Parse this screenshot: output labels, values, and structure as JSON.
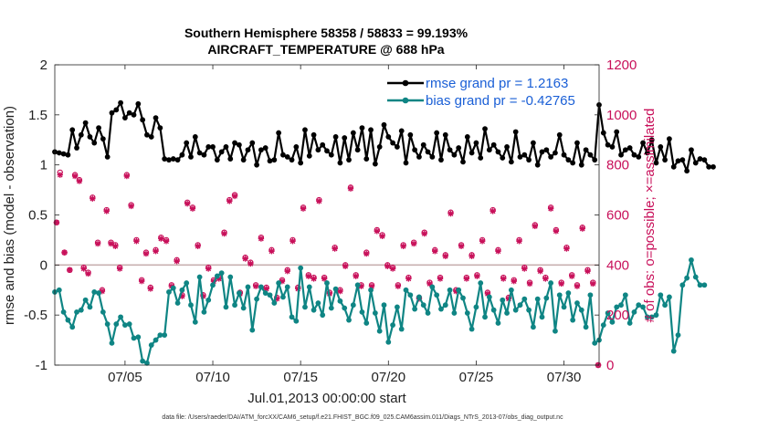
{
  "chart_data": {
    "type": "line",
    "title_line1": "Southern Hemisphere 58358 / 58833 = 99.193%",
    "title_line2": "AIRCRAFT_TEMPERATURE @ 688 hPa",
    "ylabel_left": "rmse and bias (model - observation)",
    "ylabel_right": "# of obs: o=possible; ×=assimilated",
    "xlabel": "Jul.01,2013 00:00:00 start",
    "footnote": "data file: /Users/raeder/DAI/ATM_forcXX/CAM6_setup/f.e21.FHIST_BGC.f09_025.CAM6assim.011/Diags_NTrS_2013-07/obs_diag_output.nc",
    "ylim_left": [
      -1,
      2
    ],
    "ylim_right": [
      0,
      1200
    ],
    "xlim": [
      1,
      32
    ],
    "yticks_left": [
      "2",
      "1.5",
      "1",
      "0.5",
      "0",
      "-0.5",
      "-1"
    ],
    "yticks_left_values": [
      2,
      1.5,
      1,
      0.5,
      0,
      -0.5,
      -1
    ],
    "yticks_right": [
      "1200",
      "1000",
      "800",
      "600",
      "400",
      "200",
      "0"
    ],
    "yticks_right_values": [
      1200,
      1000,
      800,
      600,
      400,
      200,
      0
    ],
    "xticks": [
      "07/05",
      "07/10",
      "07/15",
      "07/20",
      "07/25",
      "07/30"
    ],
    "xticks_values": [
      5,
      10,
      15,
      20,
      25,
      30
    ],
    "x_start": 1.0,
    "x_step": 0.25,
    "series": [
      {
        "name": "rmse grand pr = 1.2163",
        "color": "#000000",
        "values": [
          1.13,
          1.12,
          1.11,
          1.1,
          1.35,
          1.17,
          1.3,
          1.42,
          1.28,
          1.22,
          1.37,
          1.26,
          1.08,
          1.52,
          1.55,
          1.62,
          1.47,
          1.52,
          1.5,
          1.61,
          1.45,
          1.3,
          1.28,
          1.47,
          1.37,
          1.06,
          1.05,
          1.06,
          1.05,
          1.1,
          1.22,
          1.08,
          1.28,
          1.12,
          1.1,
          1.18,
          1.18,
          1.05,
          1.13,
          1.18,
          1.06,
          1.22,
          1.2,
          1.05,
          1.15,
          1.22,
          1.0,
          1.15,
          1.17,
          1.04,
          1.05,
          1.32,
          1.1,
          1.08,
          1.05,
          1.18,
          1.02,
          1.35,
          1.09,
          1.3,
          1.15,
          1.2,
          1.14,
          1.1,
          1.28,
          1.02,
          1.27,
          1.05,
          1.32,
          1.15,
          1.37,
          1.06,
          1.35,
          1.01,
          1.18,
          1.4,
          1.28,
          1.22,
          1.18,
          1.34,
          1.02,
          1.3,
          1.15,
          1.08,
          1.2,
          1.13,
          1.08,
          1.32,
          1.05,
          1.3,
          1.15,
          1.1,
          1.17,
          1.03,
          1.28,
          1.12,
          1.22,
          1.07,
          1.36,
          1.15,
          1.2,
          1.13,
          1.07,
          1.18,
          1.03,
          1.33,
          1.08,
          1.1,
          1.05,
          1.22,
          1.0,
          1.13,
          1.15,
          1.08,
          1.12,
          1.3,
          1.1,
          1.05,
          1.02,
          1.22,
          1.0,
          1.15,
          1.1,
          1.05,
          1.6,
          1.32,
          1.2,
          1.18,
          1.33,
          1.1,
          1.15,
          1.17,
          1.1,
          1.08,
          1.22,
          1.12,
          1.25,
          1.02,
          1.18,
          1.05,
          1.26,
          0.98,
          1.04,
          1.05,
          0.94,
          1.15,
          1.02,
          1.06,
          1.05,
          0.98,
          0.98
        ],
        "marker": "o"
      },
      {
        "name": "bias grand pr = -0.42765",
        "color": "#0f8584",
        "values": [
          -0.27,
          -0.25,
          -0.47,
          -0.55,
          -0.62,
          -0.47,
          -0.45,
          -0.35,
          -0.42,
          -0.27,
          -0.28,
          -0.47,
          -0.59,
          -0.78,
          -0.59,
          -0.52,
          -0.6,
          -0.59,
          -0.73,
          -0.72,
          -0.96,
          -0.98,
          -0.8,
          -0.75,
          -0.7,
          -0.7,
          -0.27,
          -0.23,
          -0.38,
          -0.25,
          -0.18,
          -0.4,
          -0.57,
          -0.12,
          -0.47,
          -0.35,
          -0.2,
          -0.11,
          -0.08,
          -0.42,
          -0.12,
          -0.4,
          -0.28,
          -0.43,
          -0.22,
          -0.65,
          -0.34,
          -0.22,
          -0.28,
          -0.3,
          -0.38,
          -0.18,
          -0.32,
          -0.22,
          -0.52,
          -0.56,
          -0.03,
          -0.42,
          -0.22,
          -0.45,
          -0.38,
          -0.5,
          -0.18,
          -0.43,
          -0.24,
          -0.36,
          -0.43,
          -0.55,
          -0.4,
          -0.2,
          -0.47,
          -0.58,
          -0.25,
          -0.48,
          -0.66,
          -0.4,
          -0.77,
          -0.6,
          -0.42,
          -0.64,
          -0.25,
          -0.3,
          -0.44,
          -0.32,
          -0.4,
          -0.48,
          -0.22,
          -0.3,
          -0.44,
          -0.4,
          -0.25,
          -0.48,
          -0.25,
          -0.33,
          -0.48,
          -0.64,
          -0.42,
          -0.18,
          -0.52,
          -0.32,
          -0.45,
          -0.58,
          -0.35,
          -0.48,
          -0.25,
          -0.45,
          -0.4,
          -0.34,
          -0.45,
          -0.62,
          -0.34,
          -0.52,
          -0.33,
          -0.18,
          -0.66,
          -0.3,
          -0.42,
          -0.28,
          -0.55,
          -0.38,
          -0.45,
          -0.62,
          -0.3,
          -0.78,
          -0.75,
          -0.6,
          -0.48,
          -0.57,
          -0.42,
          -0.4,
          -0.3,
          -0.58,
          -0.47,
          -0.4,
          -0.42,
          -0.52,
          -0.52,
          -0.5,
          -0.3,
          -0.4,
          -0.32,
          -0.86,
          -0.7,
          -0.2,
          -0.13,
          0.05,
          -0.12,
          -0.2,
          -0.2
        ],
        "marker": "o"
      }
    ],
    "obs_x": [
      1.1,
      1.3,
      1.55,
      1.85,
      2.15,
      2.4,
      2.65,
      2.9,
      3.15,
      3.45,
      3.7,
      3.95,
      4.2,
      4.45,
      4.7,
      5.1,
      5.35,
      5.65,
      5.95,
      6.2,
      6.45,
      6.75,
      7.05,
      7.35,
      7.65,
      7.95,
      8.25,
      8.55,
      8.85,
      9.15,
      9.45,
      9.75,
      10.05,
      10.35,
      10.65,
      10.95,
      11.25,
      11.55,
      11.85,
      12.15,
      12.45,
      12.75,
      13.05,
      13.35,
      13.65,
      13.95,
      14.25,
      14.55,
      14.85,
      15.15,
      15.45,
      15.75,
      16.05,
      16.35,
      16.65,
      16.95,
      17.25,
      17.55,
      17.85,
      18.15,
      18.45,
      18.75,
      19.05,
      19.35,
      19.65,
      19.95,
      20.25,
      20.55,
      20.85,
      21.15,
      21.45,
      21.75,
      22.05,
      22.35,
      22.65,
      22.95,
      23.25,
      23.55,
      23.85,
      24.15,
      24.45,
      24.75,
      25.05,
      25.35,
      25.65,
      25.95,
      26.25,
      26.55,
      26.85,
      27.15,
      27.45,
      27.75,
      28.05,
      28.35,
      28.65,
      28.95,
      29.25,
      29.55,
      29.85,
      30.15,
      30.45,
      30.75,
      31.05,
      31.35,
      31.65,
      31.95
    ],
    "obs_possible": [
      570,
      770,
      450,
      380,
      760,
      740,
      390,
      370,
      670,
      490,
      300,
      620,
      490,
      480,
      390,
      760,
      640,
      500,
      340,
      450,
      310,
      460,
      510,
      500,
      320,
      420,
      280,
      650,
      630,
      480,
      280,
      390,
      340,
      350,
      530,
      660,
      680,
      290,
      430,
      410,
      320,
      510,
      310,
      460,
      270,
      340,
      380,
      500,
      310,
      630,
      360,
      350,
      660,
      350,
      290,
      470,
      300,
      400,
      710,
      360,
      320,
      450,
      320,
      540,
      520,
      400,
      390,
      320,
      480,
      350,
      490,
      270,
      530,
      330,
      460,
      350,
      440,
      610,
      300,
      480,
      350,
      440,
      360,
      500,
      290,
      620,
      460,
      350,
      270,
      340,
      500,
      390,
      330,
      560,
      380,
      350,
      630,
      540,
      330,
      470,
      360,
      320,
      550,
      380,
      330,
      0
    ],
    "obs_assimilated": [
      570,
      760,
      450,
      380,
      755,
      735,
      385,
      365,
      665,
      485,
      295,
      615,
      485,
      475,
      385,
      755,
      635,
      495,
      335,
      445,
      305,
      455,
      505,
      495,
      315,
      415,
      275,
      645,
      625,
      475,
      275,
      385,
      335,
      345,
      525,
      655,
      675,
      285,
      425,
      405,
      315,
      505,
      305,
      455,
      265,
      335,
      375,
      495,
      305,
      625,
      355,
      345,
      655,
      345,
      285,
      465,
      295,
      395,
      705,
      355,
      315,
      445,
      315,
      535,
      515,
      395,
      385,
      315,
      475,
      345,
      485,
      265,
      525,
      325,
      455,
      345,
      435,
      605,
      295,
      475,
      345,
      435,
      355,
      495,
      285,
      615,
      455,
      345,
      265,
      335,
      495,
      385,
      325,
      555,
      375,
      345,
      625,
      535,
      325,
      465,
      355,
      315,
      545,
      375,
      325,
      0
    ],
    "colors": {
      "rmse": "#000000",
      "bias": "#0f8584",
      "obs": "#c8105a",
      "legend_text": "#1a5fd6",
      "zero_line": "#c8b0b0"
    },
    "grid": false,
    "legend_placement": "top-right"
  }
}
